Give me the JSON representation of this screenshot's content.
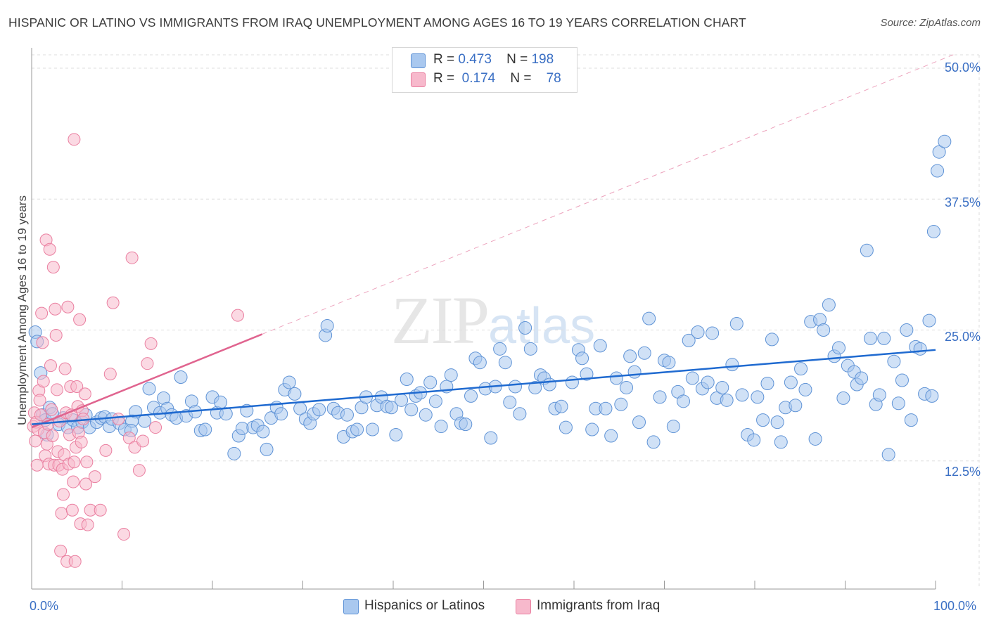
{
  "title": "HISPANIC OR LATINO VS IMMIGRANTS FROM IRAQ UNEMPLOYMENT AMONG AGES 16 TO 19 YEARS CORRELATION CHART",
  "source": "Source: ZipAtlas.com",
  "watermark": {
    "zip": "ZIP",
    "atlas": "atlas"
  },
  "legend": {
    "rows": [
      {
        "r_label": "R =",
        "r_value": "0.473",
        "n_label": "N =",
        "n_value": "198"
      },
      {
        "r_label": "R =",
        "r_value": "0.174",
        "n_label": "N =",
        "n_value": "78"
      }
    ]
  },
  "bottom_legend": [
    "Hispanics or Latinos",
    "Immigrants from Iraq"
  ],
  "colors": {
    "blue_fill": "#a9c8ef",
    "blue_stroke": "#5f93d6",
    "blue_line": "#1f6ad0",
    "pink_fill": "#f7b9cc",
    "pink_stroke": "#ea7fa0",
    "pink_line": "#e0648f",
    "grid": "#dddddd",
    "tick_text": "#3a6fc4"
  },
  "chart_data": {
    "type": "scatter",
    "title": "HISPANIC OR LATINO VS IMMIGRANTS FROM IRAQ UNEMPLOYMENT AMONG AGES 16 TO 19 YEARS CORRELATION CHART",
    "xlabel": "",
    "ylabel": "Unemployment Among Ages 16 to 19 years",
    "xlim": [
      0,
      100
    ],
    "ylim": [
      0,
      52.5
    ],
    "x_tick_labels": [
      "0.0%",
      "100.0%"
    ],
    "y_ticks": [
      12.5,
      25.0,
      37.5,
      50.0
    ],
    "y_tick_labels": [
      "12.5%",
      "25.0%",
      "37.5%",
      "50.0%"
    ],
    "grid": true,
    "legend_position": "top-center",
    "series": [
      {
        "name": "Hispanics or Latinos",
        "r": 0.473,
        "n": 198,
        "trend": {
          "x": [
            0,
            100
          ],
          "y": [
            16.0,
            23.1
          ]
        },
        "points": [
          [
            0.4,
            24.8
          ],
          [
            0.6,
            23.9
          ],
          [
            1.0,
            20.9
          ],
          [
            1.2,
            16.9
          ],
          [
            1.5,
            16.4
          ],
          [
            1.7,
            15.0
          ],
          [
            2.0,
            17.6
          ],
          [
            2.3,
            17.0
          ],
          [
            3.5,
            16.6
          ],
          [
            3.0,
            16.0
          ],
          [
            4.0,
            15.7
          ],
          [
            4.6,
            16.4
          ],
          [
            5.1,
            15.7
          ],
          [
            5.6,
            16.2
          ],
          [
            6.0,
            16.9
          ],
          [
            6.4,
            15.7
          ],
          [
            7.2,
            16.2
          ],
          [
            7.7,
            16.6
          ],
          [
            8.1,
            16.7
          ],
          [
            8.6,
            15.8
          ],
          [
            8.9,
            16.5
          ],
          [
            9.7,
            16.1
          ],
          [
            10.3,
            15.5
          ],
          [
            11.1,
            16.3
          ],
          [
            11.5,
            17.2
          ],
          [
            11.0,
            15.4
          ],
          [
            12.5,
            16.3
          ],
          [
            13.0,
            19.4
          ],
          [
            13.5,
            17.6
          ],
          [
            14.2,
            17.1
          ],
          [
            14.6,
            18.5
          ],
          [
            15.0,
            17.5
          ],
          [
            15.5,
            16.9
          ],
          [
            16.0,
            16.6
          ],
          [
            16.5,
            20.5
          ],
          [
            17.1,
            16.8
          ],
          [
            17.7,
            18.2
          ],
          [
            18.1,
            17.2
          ],
          [
            18.7,
            15.4
          ],
          [
            19.2,
            15.5
          ],
          [
            20.0,
            18.6
          ],
          [
            20.5,
            17.1
          ],
          [
            20.9,
            18.1
          ],
          [
            21.5,
            17.0
          ],
          [
            22.4,
            13.2
          ],
          [
            22.9,
            14.9
          ],
          [
            23.3,
            15.6
          ],
          [
            23.8,
            17.3
          ],
          [
            24.5,
            15.7
          ],
          [
            25.0,
            15.9
          ],
          [
            25.6,
            15.3
          ],
          [
            26.0,
            13.6
          ],
          [
            26.5,
            16.6
          ],
          [
            27.1,
            17.6
          ],
          [
            27.6,
            17.0
          ],
          [
            28.0,
            19.3
          ],
          [
            28.5,
            20.0
          ],
          [
            29.1,
            18.9
          ],
          [
            29.7,
            17.5
          ],
          [
            30.3,
            16.5
          ],
          [
            30.8,
            16.1
          ],
          [
            31.2,
            17.0
          ],
          [
            31.8,
            17.4
          ],
          [
            32.5,
            24.5
          ],
          [
            32.7,
            25.4
          ],
          [
            33.4,
            17.5
          ],
          [
            33.9,
            17.1
          ],
          [
            34.5,
            14.8
          ],
          [
            34.9,
            16.9
          ],
          [
            35.5,
            15.3
          ],
          [
            36.0,
            15.5
          ],
          [
            36.5,
            17.6
          ],
          [
            37.0,
            18.6
          ],
          [
            37.7,
            15.5
          ],
          [
            38.2,
            17.8
          ],
          [
            38.7,
            18.6
          ],
          [
            39.3,
            17.7
          ],
          [
            39.8,
            17.6
          ],
          [
            40.3,
            15.0
          ],
          [
            40.9,
            18.3
          ],
          [
            41.5,
            20.3
          ],
          [
            42.0,
            17.4
          ],
          [
            42.5,
            18.7
          ],
          [
            43.0,
            19.0
          ],
          [
            43.6,
            16.9
          ],
          [
            44.1,
            20.0
          ],
          [
            44.7,
            18.2
          ],
          [
            45.3,
            15.8
          ],
          [
            45.9,
            19.6
          ],
          [
            46.4,
            20.7
          ],
          [
            47.0,
            17.0
          ],
          [
            47.5,
            16.1
          ],
          [
            48.0,
            16.0
          ],
          [
            48.6,
            18.7
          ],
          [
            49.1,
            22.3
          ],
          [
            49.6,
            21.9
          ],
          [
            50.2,
            19.4
          ],
          [
            50.8,
            14.7
          ],
          [
            51.3,
            19.6
          ],
          [
            51.8,
            23.2
          ],
          [
            52.4,
            21.9
          ],
          [
            52.9,
            18.1
          ],
          [
            53.5,
            19.6
          ],
          [
            54.0,
            17.0
          ],
          [
            54.6,
            25.2
          ],
          [
            55.2,
            23.2
          ],
          [
            55.7,
            19.5
          ],
          [
            56.3,
            20.7
          ],
          [
            56.7,
            20.4
          ],
          [
            57.3,
            19.8
          ],
          [
            57.9,
            17.5
          ],
          [
            58.6,
            17.7
          ],
          [
            59.1,
            15.7
          ],
          [
            59.8,
            20.0
          ],
          [
            60.5,
            23.1
          ],
          [
            60.9,
            22.3
          ],
          [
            61.4,
            20.8
          ],
          [
            62.0,
            15.5
          ],
          [
            62.4,
            17.5
          ],
          [
            62.9,
            23.5
          ],
          [
            63.5,
            17.5
          ],
          [
            64.1,
            14.9
          ],
          [
            64.7,
            20.4
          ],
          [
            65.2,
            17.9
          ],
          [
            65.8,
            19.5
          ],
          [
            66.2,
            22.5
          ],
          [
            66.7,
            21.0
          ],
          [
            67.2,
            16.2
          ],
          [
            67.8,
            22.8
          ],
          [
            68.3,
            26.1
          ],
          [
            68.8,
            14.3
          ],
          [
            69.5,
            18.6
          ],
          [
            70.0,
            22.1
          ],
          [
            70.5,
            21.9
          ],
          [
            71.0,
            15.8
          ],
          [
            71.5,
            19.1
          ],
          [
            72.1,
            18.2
          ],
          [
            72.7,
            24.0
          ],
          [
            73.1,
            20.4
          ],
          [
            73.7,
            24.8
          ],
          [
            74.2,
            19.4
          ],
          [
            74.8,
            20.0
          ],
          [
            75.3,
            24.7
          ],
          [
            75.8,
            18.5
          ],
          [
            76.4,
            19.5
          ],
          [
            76.9,
            18.3
          ],
          [
            77.5,
            21.7
          ],
          [
            78.0,
            25.6
          ],
          [
            78.6,
            18.8
          ],
          [
            79.2,
            15.0
          ],
          [
            79.9,
            14.5
          ],
          [
            80.3,
            18.6
          ],
          [
            80.9,
            16.4
          ],
          [
            81.4,
            19.9
          ],
          [
            81.9,
            24.1
          ],
          [
            82.5,
            16.2
          ],
          [
            82.9,
            14.3
          ],
          [
            83.4,
            17.6
          ],
          [
            84.0,
            20.0
          ],
          [
            84.5,
            17.8
          ],
          [
            85.1,
            21.3
          ],
          [
            85.6,
            19.3
          ],
          [
            86.2,
            25.8
          ],
          [
            86.7,
            14.6
          ],
          [
            87.2,
            26.0
          ],
          [
            87.6,
            25.0
          ],
          [
            88.2,
            27.4
          ],
          [
            88.8,
            22.5
          ],
          [
            89.3,
            23.3
          ],
          [
            89.8,
            18.5
          ],
          [
            90.3,
            21.6
          ],
          [
            91.0,
            21.0
          ],
          [
            91.3,
            19.8
          ],
          [
            91.8,
            20.4
          ],
          [
            92.4,
            32.6
          ],
          [
            92.8,
            24.2
          ],
          [
            93.4,
            17.9
          ],
          [
            93.8,
            18.8
          ],
          [
            94.3,
            24.2
          ],
          [
            94.8,
            13.1
          ],
          [
            95.4,
            22.0
          ],
          [
            95.9,
            18.0
          ],
          [
            96.3,
            20.2
          ],
          [
            96.8,
            25.0
          ],
          [
            97.3,
            16.4
          ],
          [
            97.8,
            23.4
          ],
          [
            98.3,
            23.2
          ],
          [
            98.8,
            18.9
          ],
          [
            99.3,
            25.9
          ],
          [
            99.6,
            18.7
          ],
          [
            99.8,
            34.4
          ],
          [
            100.2,
            40.2
          ],
          [
            100.4,
            42.0
          ],
          [
            101.0,
            43.0
          ]
        ]
      },
      {
        "name": "Immigrants from Iraq",
        "r": 0.174,
        "n": 78,
        "trend": {
          "x": [
            0,
            25.5
          ],
          "y": [
            15.7,
            24.6
          ]
        },
        "points": [
          [
            0.2,
            15.8
          ],
          [
            0.3,
            17.1
          ],
          [
            0.4,
            14.4
          ],
          [
            0.5,
            16.2
          ],
          [
            0.6,
            12.1
          ],
          [
            0.7,
            15.5
          ],
          [
            0.8,
            19.2
          ],
          [
            0.9,
            18.3
          ],
          [
            1.0,
            16.9
          ],
          [
            1.1,
            26.6
          ],
          [
            1.2,
            23.8
          ],
          [
            1.3,
            20.1
          ],
          [
            1.4,
            15.2
          ],
          [
            1.5,
            13.0
          ],
          [
            1.6,
            33.6
          ],
          [
            1.7,
            14.1
          ],
          [
            1.8,
            16.0
          ],
          [
            1.9,
            12.2
          ],
          [
            2.0,
            32.7
          ],
          [
            2.1,
            21.6
          ],
          [
            2.2,
            17.4
          ],
          [
            2.3,
            14.9
          ],
          [
            2.4,
            31.0
          ],
          [
            2.5,
            12.1
          ],
          [
            2.6,
            27.0
          ],
          [
            2.7,
            24.5
          ],
          [
            2.8,
            19.3
          ],
          [
            2.9,
            13.4
          ],
          [
            3.0,
            12.1
          ],
          [
            3.1,
            16.3
          ],
          [
            3.2,
            3.9
          ],
          [
            3.3,
            7.5
          ],
          [
            3.4,
            11.7
          ],
          [
            3.5,
            9.3
          ],
          [
            3.6,
            13.1
          ],
          [
            3.7,
            21.3
          ],
          [
            3.8,
            17.1
          ],
          [
            3.9,
            2.9
          ],
          [
            4.0,
            27.2
          ],
          [
            4.1,
            12.2
          ],
          [
            4.2,
            15.0
          ],
          [
            4.3,
            19.6
          ],
          [
            4.4,
            16.9
          ],
          [
            4.5,
            7.8
          ],
          [
            4.6,
            10.5
          ],
          [
            4.7,
            12.4
          ],
          [
            4.8,
            2.9
          ],
          [
            4.9,
            13.8
          ],
          [
            5.0,
            19.6
          ],
          [
            5.1,
            17.7
          ],
          [
            5.2,
            15.2
          ],
          [
            5.3,
            26.0
          ],
          [
            5.4,
            6.5
          ],
          [
            5.5,
            14.3
          ],
          [
            5.6,
            17.3
          ],
          [
            5.7,
            16.5
          ],
          [
            4.7,
            43.2
          ],
          [
            5.9,
            18.9
          ],
          [
            6.0,
            10.3
          ],
          [
            6.1,
            12.4
          ],
          [
            6.2,
            6.4
          ],
          [
            6.5,
            7.8
          ],
          [
            7.0,
            11.0
          ],
          [
            7.6,
            7.8
          ],
          [
            8.2,
            13.5
          ],
          [
            8.7,
            20.8
          ],
          [
            9.0,
            27.6
          ],
          [
            9.6,
            16.5
          ],
          [
            10.2,
            5.5
          ],
          [
            10.8,
            14.7
          ],
          [
            11.1,
            31.9
          ],
          [
            11.4,
            13.8
          ],
          [
            11.9,
            11.6
          ],
          [
            12.3,
            14.4
          ],
          [
            12.8,
            21.8
          ],
          [
            13.2,
            23.7
          ],
          [
            13.7,
            15.7
          ],
          [
            22.8,
            26.4
          ]
        ]
      }
    ]
  }
}
